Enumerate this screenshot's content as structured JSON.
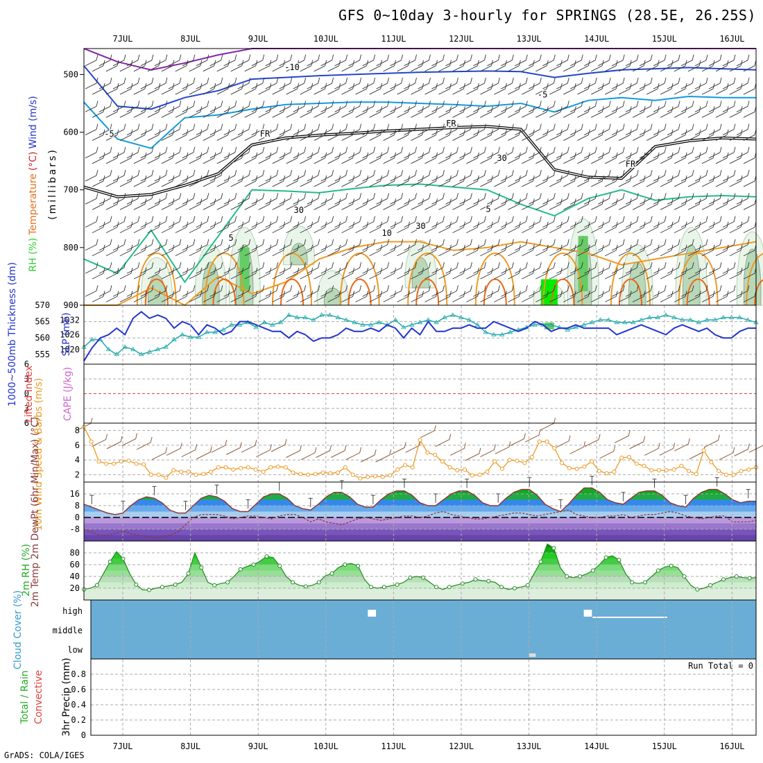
{
  "title": "GFS 0~10day 3-hourly for SPRINGS (28.5E, 26.25S)",
  "footer": "GrADS: COLA/IGES",
  "dates": [
    "7JUL",
    "8JUL",
    "9JUL",
    "10JUL",
    "11JUL",
    "12JUL",
    "13JUL",
    "14JUL",
    "15JUL",
    "16JUL"
  ],
  "colors": {
    "frame": "#000000",
    "grid": "#aaaaaa",
    "sky": "#6aaed6",
    "zero": "#e04040"
  },
  "chart_data": [
    {
      "type": "contour",
      "panel": "upper-air",
      "title": "Temperature / Wind / RH cross section",
      "ylabel_parts": [
        {
          "text": "RH (%)",
          "color": "#33cc33"
        },
        {
          "text": "Temperature",
          "color": "#e07020"
        },
        {
          "text": "(°C)",
          "color": "#cc2222"
        },
        {
          "text": "Wind (m/s)",
          "color": "#2233cc"
        }
      ],
      "ylabel2": "(millibars)",
      "yticks": [
        500,
        600,
        700,
        800,
        900
      ],
      "ylim": [
        455,
        900
      ],
      "contour_labels": [
        {
          "text": "-10",
          "day": 2.5,
          "p": 492,
          "color": "#2244cc"
        },
        {
          "text": "-5",
          "day": 6.2,
          "p": 540,
          "color": "#1199dd"
        },
        {
          "text": "-5",
          "day": -0.2,
          "p": 608,
          "color": "#1199dd"
        },
        {
          "text": "FR",
          "day": 2.1,
          "p": 608,
          "color": "#000000"
        },
        {
          "text": "FR",
          "day": 4.85,
          "p": 590,
          "color": "#000000"
        },
        {
          "text": "FR",
          "day": 7.5,
          "p": 660,
          "color": "#000000"
        },
        {
          "text": "5",
          "day": 5.4,
          "p": 738,
          "color": "#22bb88"
        },
        {
          "text": "5",
          "day": 1.6,
          "p": 788,
          "color": "#22bb88"
        },
        {
          "text": "10",
          "day": 3.9,
          "p": 780,
          "color": "#ee9922"
        },
        {
          "text": "30",
          "day": 5.6,
          "p": 650,
          "color": "#999999"
        },
        {
          "text": "30",
          "day": 2.6,
          "p": 740,
          "color": "#999999"
        },
        {
          "text": "30",
          "day": 4.4,
          "p": 768,
          "color": "#999999"
        }
      ],
      "isotherms": [
        {
          "name": "-15",
          "color": "#8822aa",
          "p": [
            455,
            478,
            492,
            480,
            466,
            455,
            455,
            455,
            455,
            455,
            455,
            455,
            455,
            455,
            455,
            455,
            455,
            455,
            455,
            455,
            455
          ]
        },
        {
          "name": "-10",
          "color": "#2244cc",
          "p": [
            485,
            555,
            560,
            540,
            528,
            508,
            505,
            502,
            500,
            498,
            496,
            495,
            494,
            495,
            505,
            498,
            492,
            490,
            488,
            490,
            492
          ]
        },
        {
          "name": "-5",
          "color": "#1199dd",
          "p": [
            548,
            612,
            628,
            575,
            570,
            560,
            552,
            550,
            548,
            548,
            550,
            552,
            555,
            550,
            565,
            545,
            540,
            545,
            538,
            540,
            540
          ]
        },
        {
          "name": "FR",
          "color": "#000000",
          "p": [
            695,
            712,
            708,
            692,
            672,
            622,
            610,
            605,
            602,
            598,
            595,
            592,
            590,
            595,
            665,
            678,
            680,
            625,
            615,
            610,
            612
          ]
        },
        {
          "name": "5",
          "color": "#22bb88",
          "p": [
            820,
            845,
            770,
            860,
            780,
            700,
            702,
            705,
            698,
            692,
            690,
            695,
            700,
            725,
            745,
            715,
            700,
            718,
            712,
            710,
            712
          ]
        },
        {
          "name": "10",
          "color": "#ee9922",
          "p": [
            900,
            900,
            870,
            900,
            850,
            880,
            860,
            820,
            800,
            790,
            790,
            805,
            800,
            790,
            800,
            810,
            830,
            820,
            810,
            800,
            790
          ]
        }
      ],
      "rh_blobs": [
        {
          "day": 0.5,
          "p0": 790,
          "p1": 900,
          "level": 1
        },
        {
          "day": 1.3,
          "p0": 760,
          "p1": 900,
          "level": 1
        },
        {
          "day": 1.8,
          "p0": 720,
          "p1": 900,
          "level": 2
        },
        {
          "day": 2.6,
          "p0": 740,
          "p1": 830,
          "level": 1
        },
        {
          "day": 3.1,
          "p0": 820,
          "p1": 900,
          "level": 1
        },
        {
          "day": 4.4,
          "p0": 760,
          "p1": 870,
          "level": 1
        },
        {
          "day": 6.3,
          "p0": 850,
          "p1": 900,
          "level": 3
        },
        {
          "day": 6.8,
          "p0": 700,
          "p1": 900,
          "level": 2
        },
        {
          "day": 7.6,
          "p0": 760,
          "p1": 900,
          "level": 1
        },
        {
          "day": 8.4,
          "p0": 720,
          "p1": 900,
          "level": 1
        },
        {
          "day": 9.3,
          "p0": 730,
          "p1": 900,
          "level": 1
        }
      ]
    },
    {
      "type": "line",
      "panel": "thickness-slp",
      "ylabel_left": "1000~500mb Thickness (dm)",
      "ylabel_right": "SLP (mb)",
      "thickness_ticks": [
        555,
        560,
        565,
        570
      ],
      "slp_ticks": [
        1020,
        1026,
        1032
      ],
      "ylim": [
        552,
        570
      ],
      "series": [
        {
          "name": "1000~500mb Thickness",
          "color": "#2233cc",
          "values": [
            553,
            557,
            560,
            561,
            563,
            561,
            566,
            568,
            566,
            567,
            566,
            563,
            565,
            564,
            561,
            564,
            563,
            561,
            562,
            565,
            565,
            564,
            563,
            562,
            562,
            560,
            562,
            561,
            559,
            560,
            560,
            561,
            563,
            562,
            562,
            563,
            562,
            564,
            563,
            560,
            563,
            561,
            565,
            562,
            562,
            563,
            563,
            564,
            563,
            563,
            565,
            564,
            563,
            562,
            563,
            565,
            564,
            562,
            563,
            563,
            564,
            563,
            563,
            563,
            563,
            561,
            562,
            563,
            564,
            563,
            562,
            561,
            563,
            564,
            563,
            562,
            563,
            561,
            560,
            560,
            562,
            563,
            563
          ]
        },
        {
          "name": "SLP",
          "color": "#22aaaa",
          "values": [
            1021,
            1024,
            1024,
            1020,
            1018,
            1021,
            1020,
            1018,
            1019,
            1020,
            1021,
            1024,
            1026,
            1025,
            1025,
            1027,
            1027,
            1028,
            1030,
            1030,
            1031,
            1029,
            1031,
            1030,
            1031,
            1034,
            1033,
            1033,
            1032,
            1034,
            1034,
            1033,
            1032,
            1031,
            1030,
            1030,
            1031,
            1030,
            1032,
            1029,
            1030,
            1031,
            1032,
            1031,
            1033,
            1034,
            1033,
            1032,
            1030,
            1027,
            1026,
            1026,
            1027,
            1028,
            1029,
            1030,
            1030,
            1030,
            1029,
            1028,
            1029,
            1030,
            1031,
            1032,
            1032,
            1031,
            1031,
            1031,
            1032,
            1033,
            1033,
            1034,
            1033,
            1032,
            1032,
            1031,
            1032,
            1032,
            1033,
            1033,
            1033,
            1032,
            1031
          ]
        }
      ]
    },
    {
      "type": "line",
      "panel": "li-cape",
      "ylabel_left": "Lifted Index",
      "ylabel_right": "CAPE (J/kg)",
      "yticks": [
        -6,
        -3,
        0,
        3,
        6
      ],
      "ylim": [
        -6,
        6
      ],
      "series": []
    },
    {
      "type": "line",
      "panel": "wind10m",
      "ylabel": "10m Wind Speed & Barbs (m/s)",
      "yticks": [
        2,
        4,
        6,
        8
      ],
      "ylim": [
        1,
        9
      ],
      "series": [
        {
          "name": "10m Wind Speed",
          "color": "#ee9922",
          "values": [
            8.5,
            6.5,
            3.8,
            3.5,
            3.5,
            3.8,
            3.9,
            3.5,
            3.4,
            2.0,
            2.0,
            1.6,
            2.6,
            2.4,
            2.4,
            2.0,
            2.1,
            2.4,
            3.0,
            3.0,
            2.7,
            2.9,
            3.0,
            2.7,
            2.4,
            3.0,
            3.1,
            3.0,
            2.3,
            2.1,
            2.0,
            2.1,
            2.3,
            2.2,
            2.3,
            3.0,
            2.0,
            1.5,
            1.7,
            1.8,
            1.7,
            1.9,
            2.7,
            3.3,
            3.0,
            6.7,
            5.0,
            4.7,
            3.8,
            3.0,
            2.6,
            2.7,
            1.9,
            2.0,
            2.4,
            3.8,
            2.8,
            4.0,
            3.9,
            3.6,
            4.4,
            6.5,
            6.5,
            5.6,
            3.6,
            2.9,
            2.8,
            3.1,
            3.8,
            2.5,
            2.2,
            2.4,
            4.3,
            4.4,
            3.5,
            3.2,
            2.6,
            2.6,
            2.6,
            2.7,
            3.2,
            2.5,
            2.1,
            5.3,
            3.7,
            2.5,
            2.0,
            2.0,
            2.5,
            2.7,
            3.0
          ]
        }
      ]
    },
    {
      "type": "area",
      "panel": "temp2m",
      "ylabel": "2m Temp 2m DewPt (6hr Min/Max) (°C)",
      "yticks": [
        -8,
        0,
        8,
        16
      ],
      "ylim": [
        -16,
        24
      ],
      "series": [
        {
          "name": "2m Temp",
          "color": "#8b3a3a",
          "values": [
            9,
            7,
            5,
            3,
            2,
            3,
            8,
            12,
            14,
            13,
            10,
            5,
            3,
            3,
            8,
            13,
            15,
            14,
            11,
            6,
            4,
            4,
            9,
            14,
            16,
            16,
            13,
            8,
            6,
            5,
            9,
            14,
            17,
            17,
            14,
            9,
            7,
            7,
            12,
            16,
            18,
            18,
            15,
            10,
            8,
            8,
            12,
            16,
            18,
            18,
            15,
            10,
            8,
            8,
            13,
            17,
            19,
            19,
            15,
            9,
            6,
            4,
            9,
            15,
            20,
            20,
            17,
            12,
            10,
            9,
            13,
            17,
            18,
            18,
            15,
            10,
            8,
            7,
            13,
            17,
            19,
            19,
            16,
            12,
            10,
            11,
            11
          ]
        },
        {
          "name": "2m DewPt",
          "color": "#8b3a3a",
          "values": [
            -8,
            -10,
            -12,
            -12,
            -11,
            -9,
            -11,
            -12,
            -13,
            -14,
            -13,
            -12,
            -10,
            -5,
            0,
            2,
            2,
            2,
            1,
            -1,
            0,
            1,
            1,
            0,
            -1,
            1,
            2,
            2,
            0,
            -3,
            -1,
            -3,
            -4,
            -5,
            -3,
            -1,
            0,
            -1,
            -2,
            -1,
            0,
            1,
            1,
            0,
            1,
            3,
            4,
            2,
            1,
            0,
            -1,
            -1,
            0,
            1,
            2,
            3,
            3,
            2,
            1,
            2,
            3,
            4,
            5,
            2,
            1,
            0,
            0,
            1,
            1,
            2,
            0,
            1,
            2,
            2,
            3,
            4,
            3,
            1,
            0,
            -1,
            0,
            1,
            1,
            -3,
            -3,
            -3,
            -2
          ]
        }
      ]
    },
    {
      "type": "area",
      "panel": "rh2m",
      "ylabel": "2m RH (%)",
      "yticks": [
        20,
        40,
        60,
        80
      ],
      "ylim": [
        0,
        100
      ],
      "series": [
        {
          "name": "2m RH",
          "color": "#228822",
          "values": [
            18,
            20,
            25,
            45,
            65,
            82,
            70,
            45,
            26,
            17,
            17,
            20,
            22,
            24,
            26,
            30,
            45,
            80,
            55,
            30,
            25,
            28,
            30,
            40,
            52,
            57,
            60,
            66,
            74,
            72,
            58,
            40,
            30,
            25,
            23,
            25,
            30,
            41,
            45,
            55,
            60,
            62,
            58,
            35,
            22,
            20,
            22,
            24,
            26,
            30,
            38,
            40,
            38,
            30,
            22,
            18,
            22,
            25,
            28,
            30,
            35,
            33,
            32,
            30,
            22,
            18,
            20,
            22,
            25,
            45,
            65,
            95,
            88,
            55,
            40,
            38,
            40,
            44,
            50,
            60,
            72,
            75,
            68,
            45,
            30,
            28,
            30,
            40,
            50,
            56,
            58,
            55,
            40,
            25,
            18,
            20,
            25,
            30,
            35,
            38,
            40,
            38,
            37,
            38
          ]
        }
      ]
    },
    {
      "type": "heatmap",
      "panel": "cloud",
      "ylabel": "Cloud Cover (%)",
      "levels": [
        "high",
        "middle",
        "low"
      ],
      "cells": [
        {
          "level": "high",
          "day": 3.62,
          "days": 0.12
        },
        {
          "level": "high",
          "day": 6.81,
          "days": 0.12
        },
        {
          "level": "high",
          "day": 6.94,
          "days": 1.1,
          "thin": true
        },
        {
          "level": "low",
          "day": 6.0,
          "days": 0.1
        }
      ]
    },
    {
      "type": "bar",
      "panel": "precip",
      "ylabel_parts": [
        {
          "text": "Total / Rain",
          "color": "#22aa22"
        },
        {
          "text": "Convective",
          "color": "#e04040"
        }
      ],
      "ylabel2": "3hr Precip (mm)",
      "yticks": [
        0,
        0.2,
        0.4,
        0.6,
        0.8
      ],
      "ylim": [
        0,
        1.0
      ],
      "annotation": "Run Total = 0",
      "values": []
    }
  ]
}
